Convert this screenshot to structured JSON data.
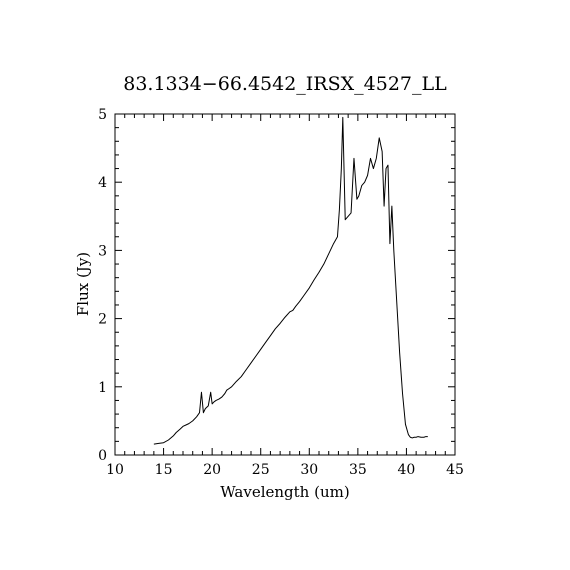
{
  "chart_data": {
    "type": "line",
    "title": "83.1334−66.4542_IRSX_4527_LL",
    "xlabel": "Wavelength (um)",
    "ylabel": "Flux (Jy)",
    "xlim": [
      10,
      45
    ],
    "ylim": [
      0,
      5
    ],
    "xticks": [
      10,
      15,
      20,
      25,
      30,
      35,
      40,
      45
    ],
    "yticks": [
      0,
      1,
      2,
      3,
      4,
      5
    ],
    "grid": false,
    "legend": "none",
    "series": [
      {
        "color": "#000000",
        "x": [
          14.0,
          14.5,
          15.0,
          15.5,
          16.0,
          16.3,
          16.7,
          17.0,
          17.3,
          17.6,
          18.0,
          18.4,
          18.7,
          18.9,
          19.1,
          19.3,
          19.6,
          19.85,
          20.0,
          20.2,
          20.4,
          20.7,
          21.0,
          21.3,
          21.5,
          21.7,
          22.0,
          22.5,
          23.0,
          23.5,
          24.0,
          24.5,
          25.0,
          25.5,
          26.0,
          26.5,
          27.0,
          27.5,
          28.0,
          28.3,
          28.6,
          29.0,
          29.5,
          30.0,
          30.5,
          31.0,
          31.5,
          32.0,
          32.5,
          32.9,
          33.1,
          33.3,
          33.45,
          33.7,
          34.0,
          34.3,
          34.6,
          34.9,
          35.1,
          35.4,
          35.7,
          36.0,
          36.3,
          36.6,
          36.9,
          37.2,
          37.5,
          37.7,
          37.9,
          38.1,
          38.3,
          38.5,
          38.7,
          38.9,
          39.1,
          39.3,
          39.6,
          39.9,
          40.2,
          40.4,
          40.6,
          40.8,
          41.0,
          41.2,
          41.5,
          41.8,
          42.0,
          42.2
        ],
        "values": [
          0.16,
          0.17,
          0.18,
          0.22,
          0.28,
          0.33,
          0.38,
          0.42,
          0.44,
          0.46,
          0.5,
          0.56,
          0.62,
          0.92,
          0.62,
          0.68,
          0.72,
          0.92,
          0.75,
          0.78,
          0.8,
          0.82,
          0.85,
          0.9,
          0.95,
          0.97,
          1.0,
          1.08,
          1.15,
          1.25,
          1.35,
          1.45,
          1.55,
          1.65,
          1.75,
          1.85,
          1.93,
          2.02,
          2.1,
          2.12,
          2.18,
          2.25,
          2.35,
          2.45,
          2.57,
          2.68,
          2.8,
          2.95,
          3.1,
          3.2,
          3.6,
          4.2,
          4.95,
          3.45,
          3.5,
          3.55,
          4.35,
          3.75,
          3.8,
          3.95,
          4.0,
          4.1,
          4.35,
          4.2,
          4.35,
          4.65,
          4.45,
          3.65,
          4.2,
          4.25,
          3.1,
          3.65,
          3.0,
          2.5,
          2.0,
          1.5,
          0.9,
          0.45,
          0.3,
          0.26,
          0.25,
          0.26,
          0.26,
          0.27,
          0.26,
          0.26,
          0.27,
          0.27
        ]
      }
    ]
  }
}
